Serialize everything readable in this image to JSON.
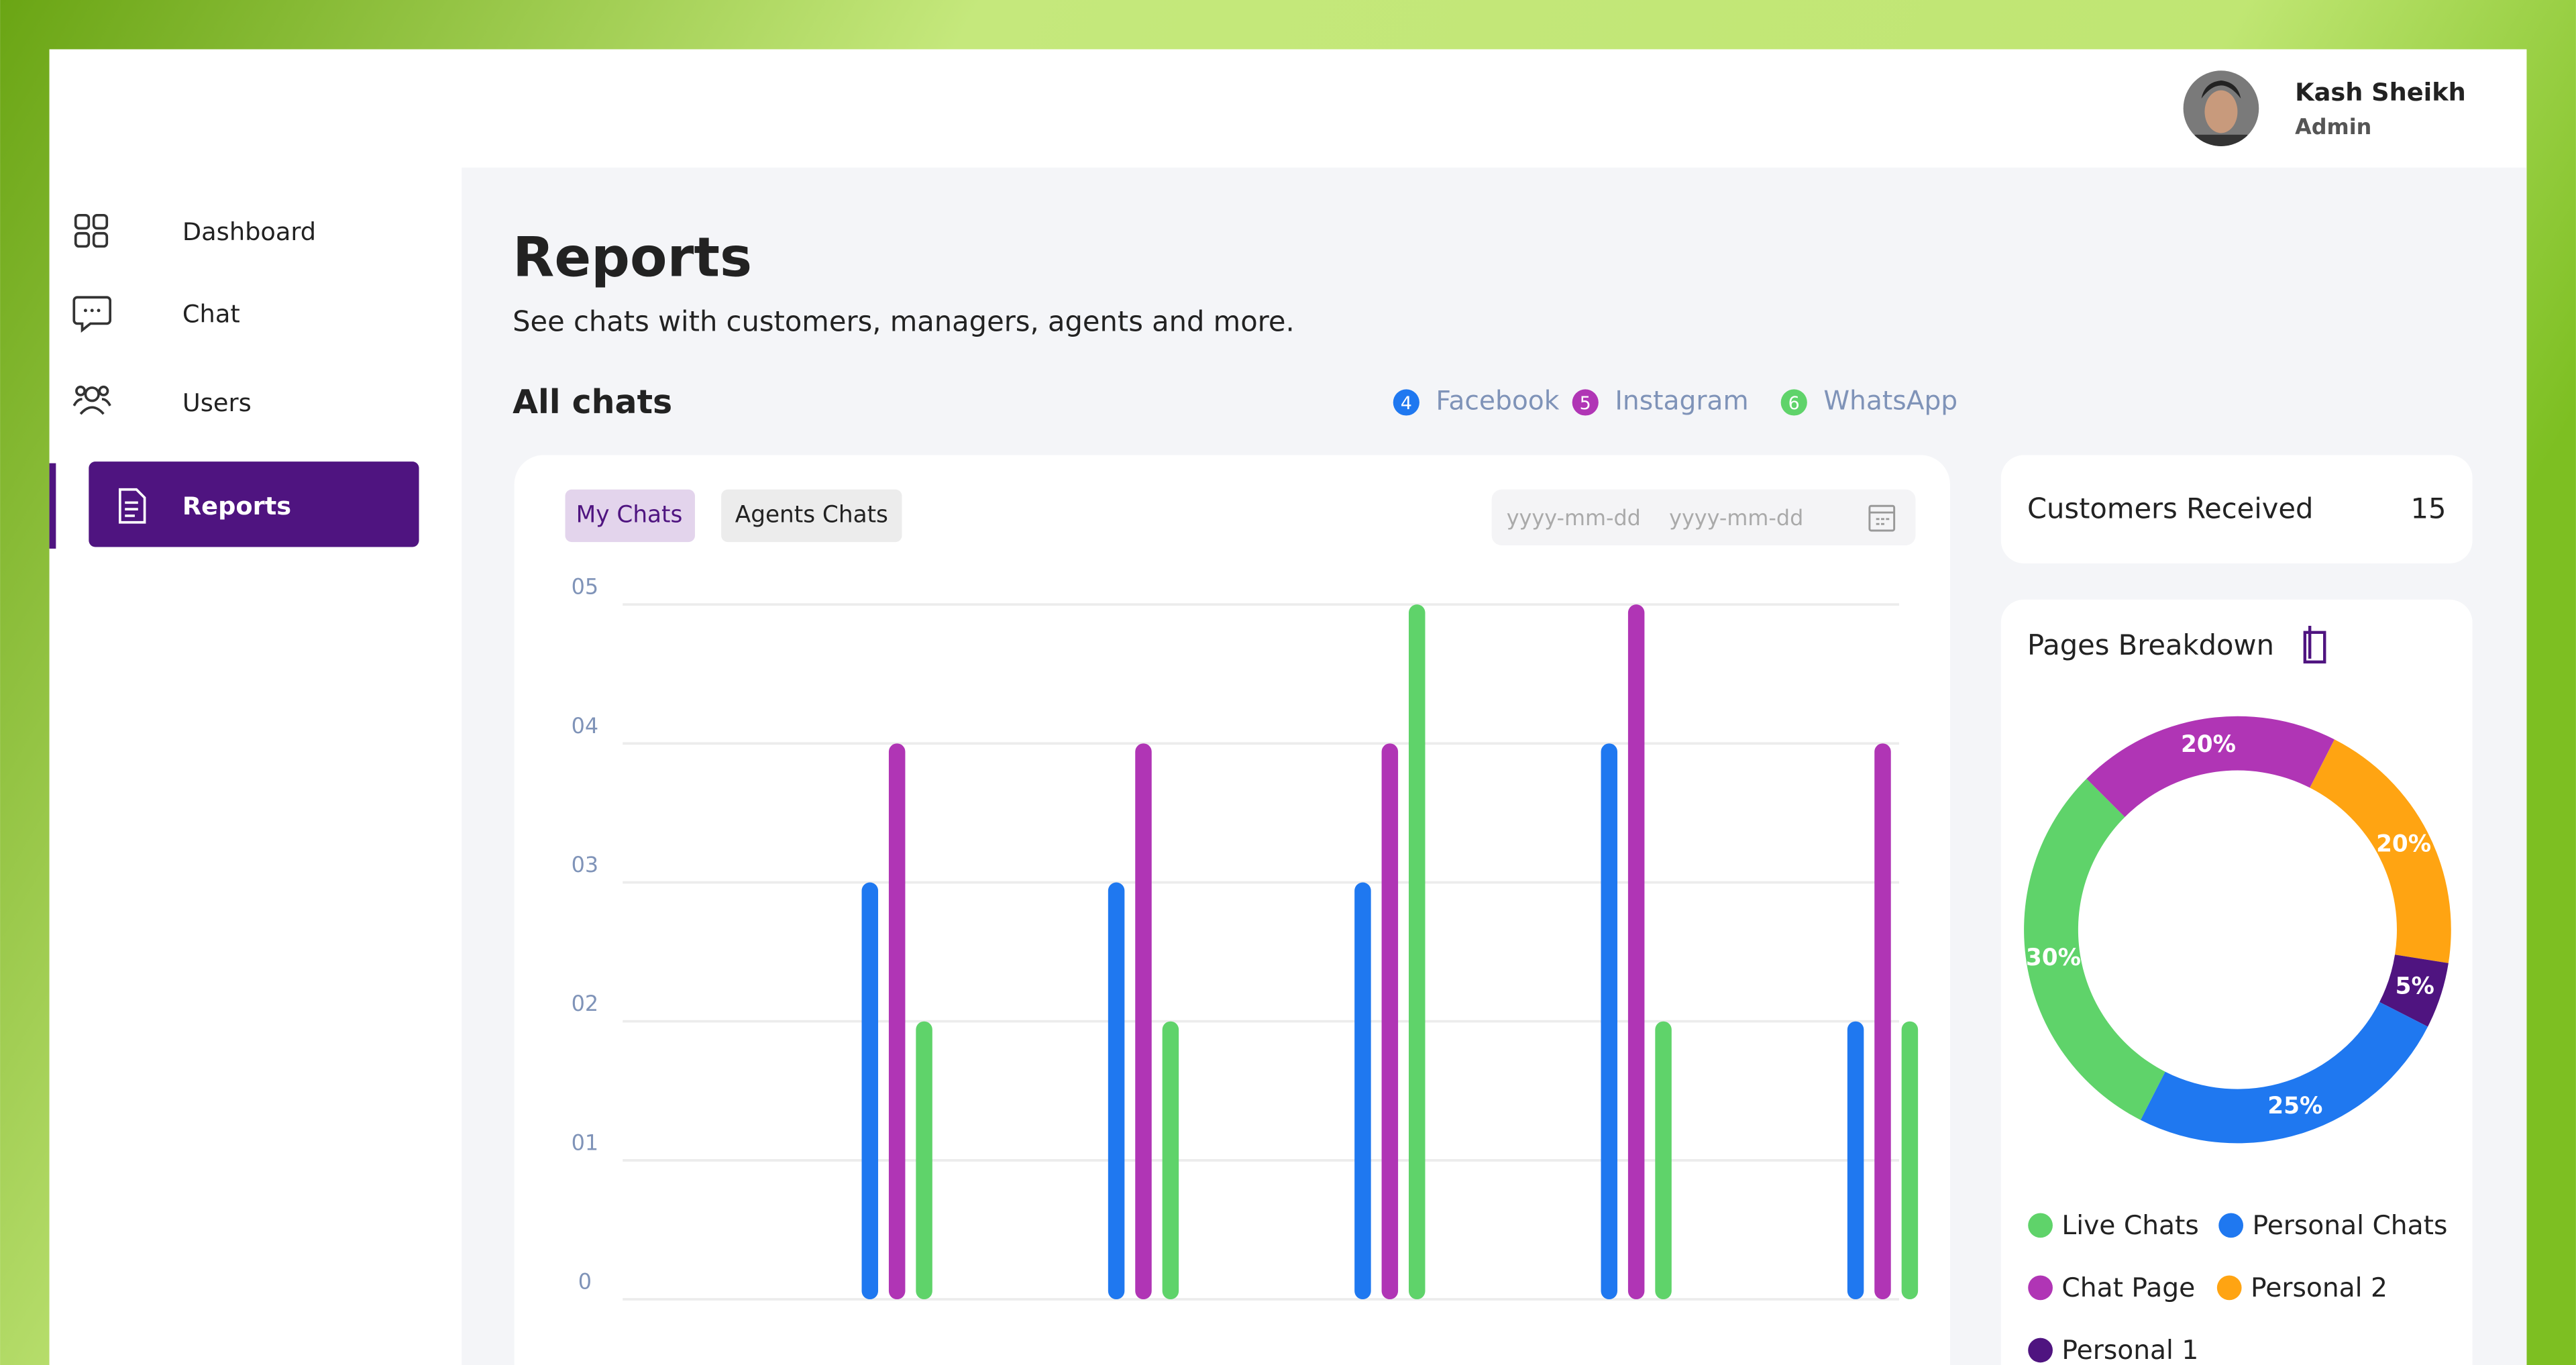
{
  "header": {
    "user_name": "Kash Sheikh",
    "user_role": "Admin"
  },
  "sidebar": {
    "items": [
      "Dashboard",
      "Chat",
      "Users",
      "Reports"
    ]
  },
  "page": {
    "title": "Reports",
    "subtitle": "See chats with customers, managers, agents and more.",
    "section_title": "All chats"
  },
  "filters": {
    "tabs": [
      "My Chats",
      "Agents Chats"
    ],
    "date_from": "yyyy-mm-dd",
    "date_to": "yyyy-mm-dd"
  },
  "customers_card": {
    "label": "Customers Received",
    "value": 15
  },
  "breakdown_card": {
    "title": "Pages Breakdown"
  },
  "chart_data": [
    {
      "type": "bar",
      "categories": [
        null,
        null,
        null,
        null,
        null
      ],
      "series": [
        {
          "name": "Facebook",
          "count": 4,
          "color": "#1f78f0",
          "values": [
            3,
            3,
            3,
            4,
            2
          ]
        },
        {
          "name": "Instagram",
          "count": 5,
          "color": "#b035b5",
          "values": [
            4,
            4,
            4,
            5,
            4
          ]
        },
        {
          "name": "WhatsApp",
          "count": 6,
          "color": "#5fd36a",
          "values": [
            2,
            2,
            5,
            2,
            2
          ]
        }
      ],
      "ylim": [
        0,
        5
      ],
      "yticks": [
        0,
        {
          "value": 1,
          "label": "01"
        },
        {
          "value": 2,
          "label": "02"
        },
        {
          "value": 3,
          "label": "03"
        },
        {
          "value": 4,
          "label": "04"
        },
        {
          "value": 5,
          "label": "05"
        }
      ],
      "grid": true
    },
    {
      "type": "pie",
      "categories": [
        "Live Chats",
        "Personal Chats",
        "Chat Page",
        "Personal 2",
        "Personal 1"
      ],
      "values": [
        30,
        25,
        20,
        20,
        5
      ],
      "value_labels": [
        "30%",
        "25%",
        "20%",
        "20%",
        "5%"
      ],
      "colors": [
        "#5fd36a",
        "#1f78f0",
        "#b035b5",
        "#ffa412",
        "#4f1480"
      ]
    }
  ]
}
